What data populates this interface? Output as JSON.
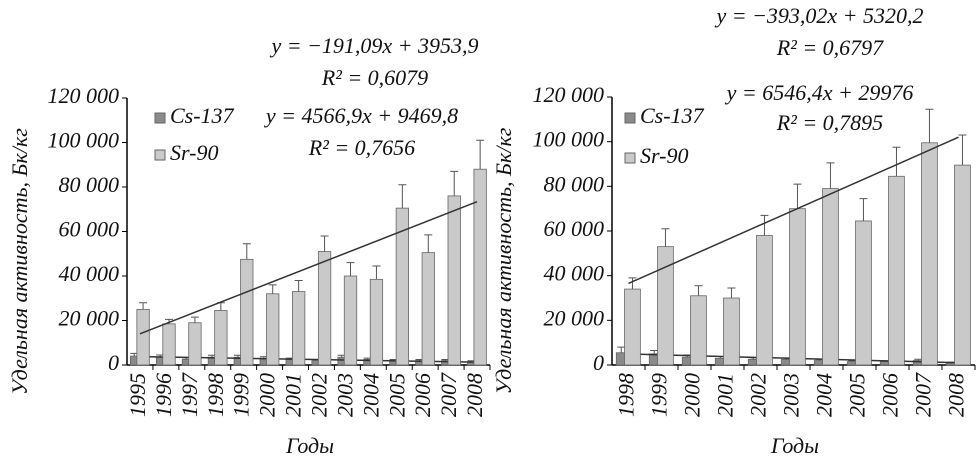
{
  "chart_data": [
    {
      "type": "bar",
      "y_label": "Удельная активность, Бк/кг",
      "x_label": "Годы",
      "categories": [
        "1995",
        "1996",
        "1997",
        "1998",
        "1999",
        "2000",
        "2001",
        "2002",
        "2003",
        "2004",
        "2005",
        "2006",
        "2007",
        "2008"
      ],
      "ylim": [
        0,
        120000
      ],
      "yticks": [
        0,
        {
          "value": 20000,
          "label": "20 000"
        },
        {
          "value": 40000,
          "label": "40 000"
        },
        {
          "value": 60000,
          "label": "60 000"
        },
        {
          "value": 80000,
          "label": "80 000"
        },
        {
          "value": 100000,
          "label": "100 000"
        },
        {
          "value": 120000,
          "label": "120 000"
        }
      ],
      "series": [
        {
          "name": "Cs-137",
          "color": "#8a8a8a",
          "values": [
            4000,
            3500,
            2500,
            3500,
            3500,
            3000,
            2500,
            2000,
            3500,
            2500,
            2000,
            2000,
            2000,
            1500
          ],
          "errors": [
            1200,
            1000,
            700,
            900,
            900,
            700,
            600,
            500,
            900,
            600,
            500,
            500,
            500,
            400
          ],
          "trend": {
            "slope": -191.09,
            "intercept": 3953.9,
            "equation": "y = −191,09x + 3953,9",
            "r2": "R² = 0,6079"
          }
        },
        {
          "name": "Sr-90",
          "color": "#c9c9c9",
          "values": [
            25000,
            18500,
            19000,
            24500,
            47500,
            32000,
            33000,
            51000,
            40000,
            38500,
            70500,
            50500,
            76000,
            88000
          ],
          "errors": [
            3000,
            2000,
            2500,
            3500,
            7000,
            4000,
            5000,
            7000,
            6000,
            6000,
            10500,
            8000,
            11000,
            13000
          ],
          "trend": {
            "slope": 4566.9,
            "intercept": 9469.8,
            "equation": "y = 4566,9x + 9469,8",
            "r2": "R² = 0,7656"
          }
        }
      ]
    },
    {
      "type": "bar",
      "y_label": "Удельная активность, Бк/кг",
      "x_label": "Годы",
      "categories": [
        "1998",
        "1999",
        "2000",
        "2001",
        "2002",
        "2003",
        "2004",
        "2005",
        "2006",
        "2007",
        "2008"
      ],
      "ylim": [
        0,
        120000
      ],
      "yticks": [
        0,
        {
          "value": 20000,
          "label": "20 000"
        },
        {
          "value": 40000,
          "label": "40 000"
        },
        {
          "value": 60000,
          "label": "60 000"
        },
        {
          "value": 80000,
          "label": "80 000"
        },
        {
          "value": 100000,
          "label": "100 000"
        },
        {
          "value": 120000,
          "label": "120 000"
        }
      ],
      "series": [
        {
          "name": "Cs-137",
          "color": "#8a8a8a",
          "values": [
            5500,
            5000,
            3500,
            3000,
            2500,
            2500,
            2000,
            1500,
            1500,
            2000,
            1000
          ],
          "errors": [
            2500,
            1500,
            1000,
            800,
            700,
            700,
            500,
            400,
            400,
            600,
            300
          ],
          "trend": {
            "slope": -393.02,
            "intercept": 5320.2,
            "equation": "y = −393,02x + 5320,2",
            "r2": "R² = 0,6797"
          }
        },
        {
          "name": "Sr-90",
          "color": "#c9c9c9",
          "values": [
            34000,
            53000,
            31000,
            30000,
            58000,
            70000,
            79000,
            64500,
            84500,
            99500,
            89500
          ],
          "errors": [
            5000,
            8000,
            4500,
            4500,
            9000,
            11000,
            11500,
            10000,
            13000,
            15000,
            13500
          ],
          "trend": {
            "slope": 6546.4,
            "intercept": 29976,
            "equation": "y = 6546,4x + 29976",
            "r2": "R² = 0,7895"
          }
        }
      ]
    }
  ]
}
